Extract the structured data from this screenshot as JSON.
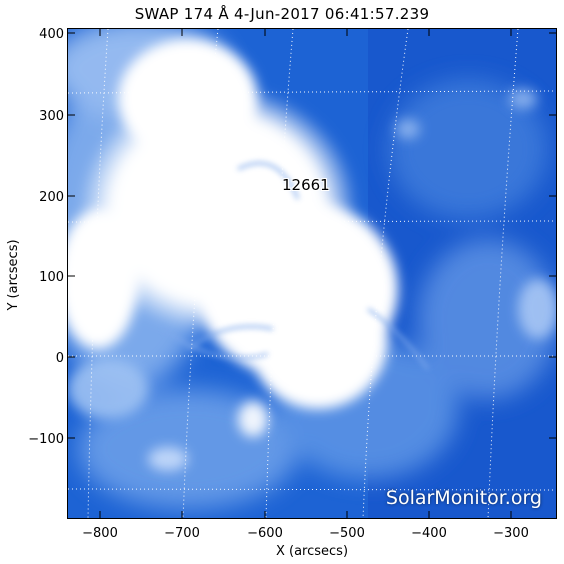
{
  "title": "SWAP 174 Å  4-Jun-2017 06:41:57.239",
  "active_region": "12661",
  "watermark": "SolarMonitor.org",
  "xlabel": "X (arcsecs)",
  "ylabel": "Y (arcsecs)",
  "x_ticks": [
    "−800",
    "−700",
    "−600",
    "−500",
    "−400",
    "−300"
  ],
  "y_ticks": [
    "400",
    "300",
    "200",
    "100",
    "0",
    "−100"
  ],
  "x_range": [
    -845,
    -245
  ],
  "y_range": [
    -200,
    405
  ],
  "colors": {
    "background": "#1a5fd0",
    "mid": "#5b93e6",
    "bright": "#ffffff"
  }
}
